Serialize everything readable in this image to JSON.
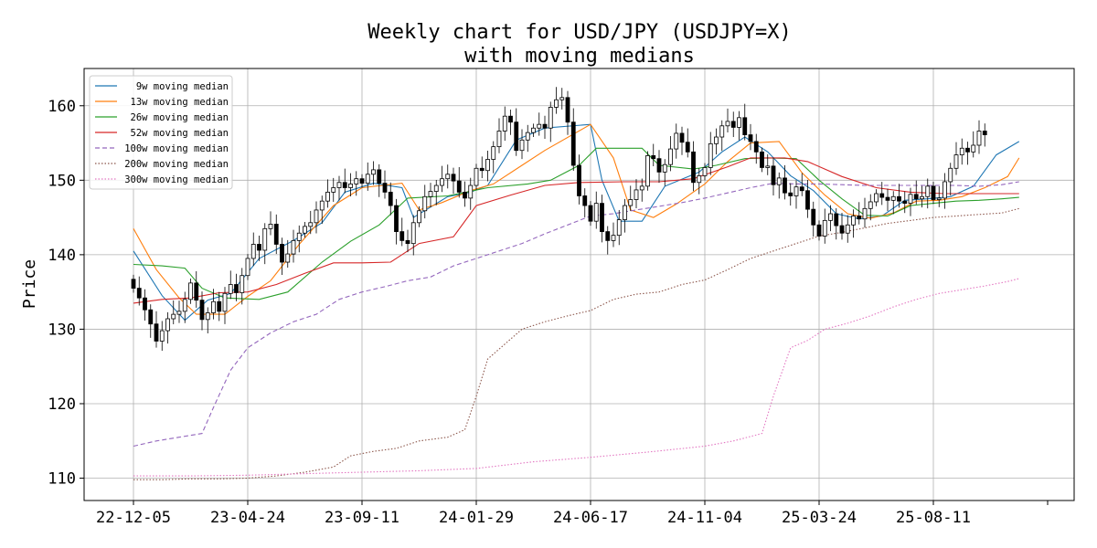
{
  "chart_data": {
    "type": "candlestick",
    "title": [
      "Weekly chart for USD/JPY (USDJPY=X)",
      "with moving medians"
    ],
    "ylabel": "Price",
    "xlabel": "",
    "ylim": [
      107,
      165
    ],
    "yticks": [
      110,
      120,
      130,
      140,
      150,
      160
    ],
    "grid": true,
    "legend_position": "top-left",
    "x_tick_labels": [
      "22-12-05",
      "23-04-24",
      "23-09-11",
      "24-01-29",
      "24-06-17",
      "24-11-04",
      "25-03-24",
      "25-08-11",
      ""
    ],
    "x_tick_index": [
      0,
      20,
      40,
      60,
      80,
      100,
      120,
      140,
      160
    ],
    "n_weeks": 156,
    "close_series": [
      135.5,
      134.2,
      132.6,
      130.7,
      128.4,
      129.8,
      131.4,
      132.0,
      132.4,
      134.0,
      136.2,
      133.9,
      131.3,
      132.2,
      133.7,
      132.4,
      134.8,
      136.0,
      134.9,
      137.2,
      139.5,
      141.4,
      140.6,
      143.5,
      144.1,
      141.4,
      139.0,
      140.1,
      141.9,
      142.9,
      143.8,
      144.3,
      146.0,
      147.2,
      148.4,
      149.0,
      149.7,
      149.0,
      149.5,
      150.2,
      149.6,
      150.8,
      151.4,
      149.6,
      148.4,
      146.6,
      143.1,
      141.9,
      141.5,
      144.3,
      145.9,
      147.8,
      148.5,
      149.3,
      150.2,
      150.8,
      149.9,
      148.4,
      147.6,
      149.3,
      151.6,
      151.3,
      152.8,
      154.5,
      156.6,
      158.6,
      157.8,
      154.0,
      155.4,
      156.4,
      157.0,
      157.5,
      157.0,
      159.8,
      160.8,
      161.1,
      157.8,
      152.0,
      147.9,
      146.6,
      144.5,
      146.9,
      143.1,
      141.9,
      142.6,
      144.7,
      146.6,
      147.4,
      148.7,
      149.2,
      153.3,
      152.9,
      151.1,
      152.1,
      154.2,
      156.3,
      155.1,
      153.8,
      149.7,
      150.6,
      151.7,
      154.9,
      155.8,
      157.3,
      157.9,
      157.1,
      158.4,
      156.1,
      155.2,
      153.8,
      151.7,
      151.9,
      149.4,
      150.3,
      148.3,
      147.9,
      149.1,
      148.6,
      146.1,
      144.0,
      142.5,
      144.6,
      145.5,
      143.9,
      142.9,
      144.0,
      145.2,
      144.8,
      146.2,
      147.1,
      148.2,
      147.7,
      147.3,
      147.8,
      147.2,
      146.9,
      148.1,
      147.5,
      147.8,
      149.2,
      147.4,
      147.6,
      149.8,
      151.6,
      153.4,
      154.3,
      153.8,
      154.7,
      156.6,
      156.1
    ],
    "series": [
      {
        "name": "9w moving median",
        "color": "#1f77b4",
        "style": "solid",
        "points": [
          [
            0,
            140.5
          ],
          [
            5,
            134.5
          ],
          [
            9,
            131.2
          ],
          [
            13,
            133.9
          ],
          [
            17,
            134.8
          ],
          [
            22,
            139.5
          ],
          [
            28,
            141.9
          ],
          [
            33,
            144.3
          ],
          [
            37,
            148.4
          ],
          [
            42,
            149.6
          ],
          [
            47,
            149.0
          ],
          [
            49,
            145.0
          ],
          [
            55,
            147.8
          ],
          [
            59,
            148.4
          ],
          [
            62,
            149.3
          ],
          [
            67,
            155.4
          ],
          [
            72,
            157.0
          ],
          [
            80,
            157.5
          ],
          [
            82,
            150.0
          ],
          [
            85,
            144.5
          ],
          [
            89,
            144.5
          ],
          [
            93,
            149.2
          ],
          [
            99,
            151.1
          ],
          [
            103,
            153.8
          ],
          [
            107,
            155.8
          ],
          [
            111,
            153.8
          ],
          [
            115,
            150.6
          ],
          [
            119,
            148.6
          ],
          [
            123,
            145.5
          ],
          [
            127,
            144.8
          ],
          [
            131,
            145.2
          ],
          [
            135,
            147.3
          ],
          [
            139,
            147.5
          ],
          [
            143,
            147.8
          ],
          [
            147,
            149.2
          ],
          [
            151,
            153.4
          ],
          [
            155,
            155.2
          ]
        ]
      },
      {
        "name": "13w moving median",
        "color": "#ff7f0e",
        "style": "solid",
        "points": [
          [
            0,
            143.5
          ],
          [
            4,
            138.0
          ],
          [
            8,
            134.2
          ],
          [
            11,
            132.0
          ],
          [
            16,
            132.0
          ],
          [
            20,
            134.4
          ],
          [
            24,
            136.5
          ],
          [
            29,
            141.4
          ],
          [
            35,
            146.6
          ],
          [
            40,
            149.0
          ],
          [
            47,
            149.6
          ],
          [
            50,
            146.0
          ],
          [
            54,
            147.0
          ],
          [
            59,
            148.6
          ],
          [
            63,
            149.5
          ],
          [
            68,
            152.0
          ],
          [
            72,
            154.0
          ],
          [
            80,
            157.5
          ],
          [
            84,
            153.0
          ],
          [
            87,
            146.0
          ],
          [
            91,
            145.0
          ],
          [
            95,
            146.8
          ],
          [
            100,
            149.5
          ],
          [
            104,
            152.5
          ],
          [
            108,
            155.0
          ],
          [
            113,
            155.2
          ],
          [
            117,
            151.0
          ],
          [
            121,
            148.0
          ],
          [
            125,
            145.5
          ],
          [
            129,
            144.9
          ],
          [
            133,
            145.6
          ],
          [
            137,
            147.2
          ],
          [
            141,
            147.3
          ],
          [
            145,
            147.8
          ],
          [
            149,
            149.0
          ],
          [
            153,
            150.5
          ],
          [
            155,
            153.0
          ]
        ]
      },
      {
        "name": "26w moving median",
        "color": "#2ca02c",
        "style": "solid",
        "points": [
          [
            0,
            138.7
          ],
          [
            5,
            138.5
          ],
          [
            9,
            138.2
          ],
          [
            12,
            135.5
          ],
          [
            16,
            134.2
          ],
          [
            22,
            134.0
          ],
          [
            27,
            135.0
          ],
          [
            33,
            139.0
          ],
          [
            38,
            141.8
          ],
          [
            43,
            144.0
          ],
          [
            48,
            147.6
          ],
          [
            55,
            147.9
          ],
          [
            62,
            149.0
          ],
          [
            69,
            149.5
          ],
          [
            73,
            150.0
          ],
          [
            78,
            152.0
          ],
          [
            81,
            154.3
          ],
          [
            89,
            154.3
          ],
          [
            92,
            152.0
          ],
          [
            98,
            151.5
          ],
          [
            102,
            152.0
          ],
          [
            107,
            152.9
          ],
          [
            111,
            153.0
          ],
          [
            116,
            152.9
          ],
          [
            120,
            150.0
          ],
          [
            124,
            147.5
          ],
          [
            128,
            145.3
          ],
          [
            132,
            145.2
          ],
          [
            136,
            146.6
          ],
          [
            140,
            146.9
          ],
          [
            144,
            147.2
          ],
          [
            148,
            147.3
          ],
          [
            152,
            147.5
          ],
          [
            155,
            147.7
          ]
        ]
      },
      {
        "name": "52w moving median",
        "color": "#d62728",
        "style": "solid",
        "points": [
          [
            0,
            133.5
          ],
          [
            5,
            134.0
          ],
          [
            10,
            134.2
          ],
          [
            15,
            134.9
          ],
          [
            20,
            135.0
          ],
          [
            25,
            136.0
          ],
          [
            30,
            137.5
          ],
          [
            35,
            138.9
          ],
          [
            40,
            138.9
          ],
          [
            45,
            139.0
          ],
          [
            50,
            141.5
          ],
          [
            56,
            142.4
          ],
          [
            60,
            146.6
          ],
          [
            66,
            148.0
          ],
          [
            72,
            149.3
          ],
          [
            78,
            149.7
          ],
          [
            86,
            149.8
          ],
          [
            92,
            149.8
          ],
          [
            98,
            150.2
          ],
          [
            104,
            151.8
          ],
          [
            108,
            153.0
          ],
          [
            114,
            153.0
          ],
          [
            118,
            152.5
          ],
          [
            124,
            150.5
          ],
          [
            130,
            149.0
          ],
          [
            136,
            148.4
          ],
          [
            142,
            148.2
          ],
          [
            148,
            148.2
          ],
          [
            155,
            148.2
          ]
        ]
      },
      {
        "name": "100w moving median",
        "color": "#9467bd",
        "style": "dashed",
        "points": [
          [
            0,
            114.3
          ],
          [
            4,
            115.0
          ],
          [
            8,
            115.5
          ],
          [
            12,
            116.0
          ],
          [
            14,
            119.5
          ],
          [
            17,
            124.5
          ],
          [
            20,
            127.5
          ],
          [
            24,
            129.5
          ],
          [
            28,
            131.0
          ],
          [
            32,
            132.0
          ],
          [
            36,
            134.0
          ],
          [
            40,
            135.0
          ],
          [
            44,
            135.7
          ],
          [
            48,
            136.5
          ],
          [
            52,
            137.0
          ],
          [
            56,
            138.5
          ],
          [
            60,
            139.5
          ],
          [
            64,
            140.5
          ],
          [
            68,
            141.5
          ],
          [
            72,
            142.8
          ],
          [
            76,
            144.0
          ],
          [
            80,
            145.2
          ],
          [
            84,
            145.5
          ],
          [
            88,
            146.0
          ],
          [
            92,
            146.5
          ],
          [
            96,
            147.0
          ],
          [
            100,
            147.6
          ],
          [
            104,
            148.3
          ],
          [
            108,
            149.0
          ],
          [
            112,
            149.6
          ],
          [
            116,
            149.5
          ],
          [
            120,
            149.5
          ],
          [
            124,
            149.4
          ],
          [
            128,
            149.3
          ],
          [
            132,
            149.3
          ],
          [
            136,
            149.3
          ],
          [
            140,
            149.3
          ],
          [
            144,
            149.3
          ],
          [
            148,
            149.2
          ],
          [
            152,
            149.4
          ],
          [
            155,
            149.8
          ]
        ]
      },
      {
        "name": "200w moving median",
        "color": "#8c564b",
        "style": "dotted",
        "points": [
          [
            0,
            109.8
          ],
          [
            5,
            109.8
          ],
          [
            10,
            109.9
          ],
          [
            15,
            109.9
          ],
          [
            20,
            110.0
          ],
          [
            25,
            110.3
          ],
          [
            30,
            110.8
          ],
          [
            35,
            111.5
          ],
          [
            38,
            113.0
          ],
          [
            42,
            113.6
          ],
          [
            46,
            114.0
          ],
          [
            50,
            115.0
          ],
          [
            55,
            115.5
          ],
          [
            58,
            116.5
          ],
          [
            60,
            121.0
          ],
          [
            62,
            126.0
          ],
          [
            65,
            128.0
          ],
          [
            68,
            130.0
          ],
          [
            72,
            131.0
          ],
          [
            76,
            131.8
          ],
          [
            80,
            132.5
          ],
          [
            84,
            134.0
          ],
          [
            88,
            134.7
          ],
          [
            92,
            135.0
          ],
          [
            96,
            136.0
          ],
          [
            100,
            136.6
          ],
          [
            104,
            138.0
          ],
          [
            108,
            139.5
          ],
          [
            112,
            140.5
          ],
          [
            116,
            141.5
          ],
          [
            120,
            142.5
          ],
          [
            124,
            143.0
          ],
          [
            128,
            143.6
          ],
          [
            132,
            144.2
          ],
          [
            136,
            144.6
          ],
          [
            140,
            145.0
          ],
          [
            144,
            145.2
          ],
          [
            148,
            145.4
          ],
          [
            152,
            145.6
          ],
          [
            155,
            146.2
          ]
        ]
      },
      {
        "name": "300w moving median",
        "color": "#e377c2",
        "style": "dotted",
        "points": [
          [
            0,
            110.3
          ],
          [
            10,
            110.3
          ],
          [
            20,
            110.4
          ],
          [
            30,
            110.6
          ],
          [
            40,
            110.8
          ],
          [
            50,
            111.0
          ],
          [
            60,
            111.3
          ],
          [
            70,
            112.2
          ],
          [
            80,
            112.8
          ],
          [
            90,
            113.5
          ],
          [
            100,
            114.3
          ],
          [
            105,
            115.0
          ],
          [
            110,
            116.0
          ],
          [
            112,
            121.0
          ],
          [
            115,
            127.5
          ],
          [
            118,
            128.5
          ],
          [
            121,
            130.0
          ],
          [
            125,
            130.8
          ],
          [
            129,
            131.8
          ],
          [
            133,
            133.0
          ],
          [
            137,
            134.0
          ],
          [
            141,
            134.8
          ],
          [
            145,
            135.3
          ],
          [
            149,
            135.8
          ],
          [
            153,
            136.4
          ],
          [
            155,
            136.8
          ]
        ]
      }
    ]
  }
}
